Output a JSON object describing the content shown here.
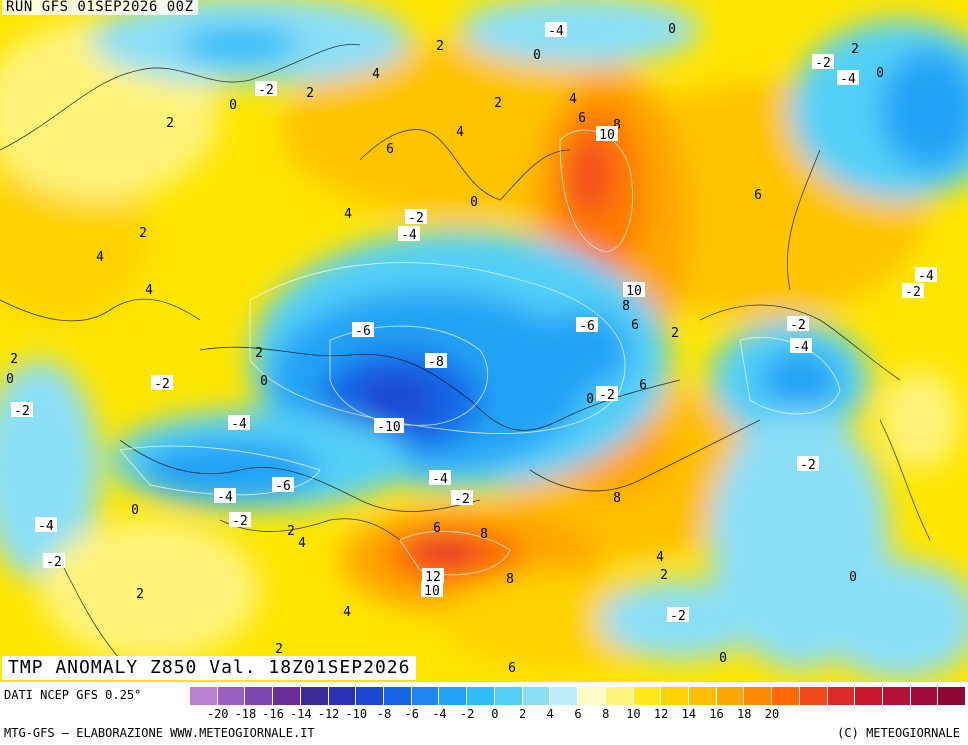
{
  "header": {
    "run_label": "RUN GFS 01SEP2026 00Z"
  },
  "map": {
    "title": "TMP ANOMALY Z850 Val. 18Z01SEP2026",
    "contour_labels": [
      {
        "text": "-4",
        "box": true
      },
      {
        "text": "0",
        "box": false
      },
      {
        "text": "2",
        "box": false
      },
      {
        "text": "0",
        "box": false
      },
      {
        "text": "-2",
        "box": true
      },
      {
        "text": "2",
        "box": false
      },
      {
        "text": "4",
        "box": false
      },
      {
        "text": "2",
        "box": false
      },
      {
        "text": "0",
        "box": false
      },
      {
        "text": "2",
        "box": false
      },
      {
        "text": "-2",
        "box": true
      },
      {
        "text": "-4",
        "box": true
      },
      {
        "text": "0",
        "box": false
      },
      {
        "text": "2",
        "box": false
      },
      {
        "text": "4",
        "box": false
      },
      {
        "text": "6",
        "box": false
      },
      {
        "text": "8",
        "box": false
      },
      {
        "text": "10",
        "box": true
      },
      {
        "text": "4",
        "box": false
      },
      {
        "text": "6",
        "box": false
      },
      {
        "text": "-2",
        "box": true
      },
      {
        "text": "-4",
        "box": true
      },
      {
        "text": "0",
        "box": false
      },
      {
        "text": "4",
        "box": false
      },
      {
        "text": "2",
        "box": false
      },
      {
        "text": "6",
        "box": false
      },
      {
        "text": "4",
        "box": false
      },
      {
        "text": "4",
        "box": false
      },
      {
        "text": "-4",
        "box": true
      },
      {
        "text": "-2",
        "box": true
      },
      {
        "text": "10",
        "box": true
      },
      {
        "text": "8",
        "box": false
      },
      {
        "text": "6",
        "box": false
      },
      {
        "text": "2",
        "box": false
      },
      {
        "text": "-6",
        "box": true
      },
      {
        "text": "-6",
        "box": true
      },
      {
        "text": "-2",
        "box": true
      },
      {
        "text": "-4",
        "box": true
      },
      {
        "text": "2",
        "box": false
      },
      {
        "text": "-8",
        "box": true
      },
      {
        "text": "0",
        "box": false
      },
      {
        "text": "2",
        "box": false
      },
      {
        "text": "0",
        "box": false
      },
      {
        "text": "-2",
        "box": true
      },
      {
        "text": "-2",
        "box": true
      },
      {
        "text": "0",
        "box": false
      },
      {
        "text": "6",
        "box": false
      },
      {
        "text": "-2",
        "box": true
      },
      {
        "text": "-10",
        "box": true
      },
      {
        "text": "-4",
        "box": true
      },
      {
        "text": "-2",
        "box": true
      },
      {
        "text": "-4",
        "box": true
      },
      {
        "text": "-6",
        "box": true
      },
      {
        "text": "8",
        "box": false
      },
      {
        "text": "-4",
        "box": true
      },
      {
        "text": "-2",
        "box": true
      },
      {
        "text": "0",
        "box": false
      },
      {
        "text": "-2",
        "box": true
      },
      {
        "text": "2",
        "box": false
      },
      {
        "text": "4",
        "box": false
      },
      {
        "text": "6",
        "box": false
      },
      {
        "text": "8",
        "box": false
      },
      {
        "text": "-4",
        "box": true
      },
      {
        "text": "4",
        "box": false
      },
      {
        "text": "2",
        "box": false
      },
      {
        "text": "-2",
        "box": true
      },
      {
        "text": "0",
        "box": false
      },
      {
        "text": "12",
        "box": true
      },
      {
        "text": "10",
        "box": true
      },
      {
        "text": "8",
        "box": false
      },
      {
        "text": "2",
        "box": false
      },
      {
        "text": "4",
        "box": false
      },
      {
        "text": "-2",
        "box": true
      },
      {
        "text": "2",
        "box": false
      },
      {
        "text": "0",
        "box": false
      },
      {
        "text": "6",
        "box": false
      }
    ]
  },
  "footer": {
    "data_source": "DATI NCEP GFS 0.25°",
    "credit": "MTG-GFS – ELABORAZIONE WWW.METEOGIORNALE.IT",
    "copyright": "(C) METEOGIORNALE",
    "scale": {
      "colors": [
        "#b97fd1",
        "#9b5fc4",
        "#7e46b0",
        "#6a2f96",
        "#3b2b9a",
        "#2a33b5",
        "#1c47d2",
        "#1565e6",
        "#1e85f0",
        "#22a2f5",
        "#2fbdf7",
        "#53d0f8",
        "#8adff7",
        "#bfeefb",
        "#fffbc6",
        "#fff37a",
        "#ffe81a",
        "#ffd200",
        "#ffbf00",
        "#ffa600",
        "#ff8a00",
        "#ff6b00",
        "#f24b1a",
        "#e02b2b",
        "#c9182c",
        "#b50f3a",
        "#a1083e",
        "#8c0636"
      ],
      "ticks": [
        "-20",
        "-18",
        "-16",
        "-14",
        "-12",
        "-10",
        "-8",
        "-6",
        "-4",
        "-2",
        "0",
        "2",
        "4",
        "6",
        "8",
        "10",
        "12",
        "14",
        "16",
        "18",
        "20"
      ]
    }
  }
}
